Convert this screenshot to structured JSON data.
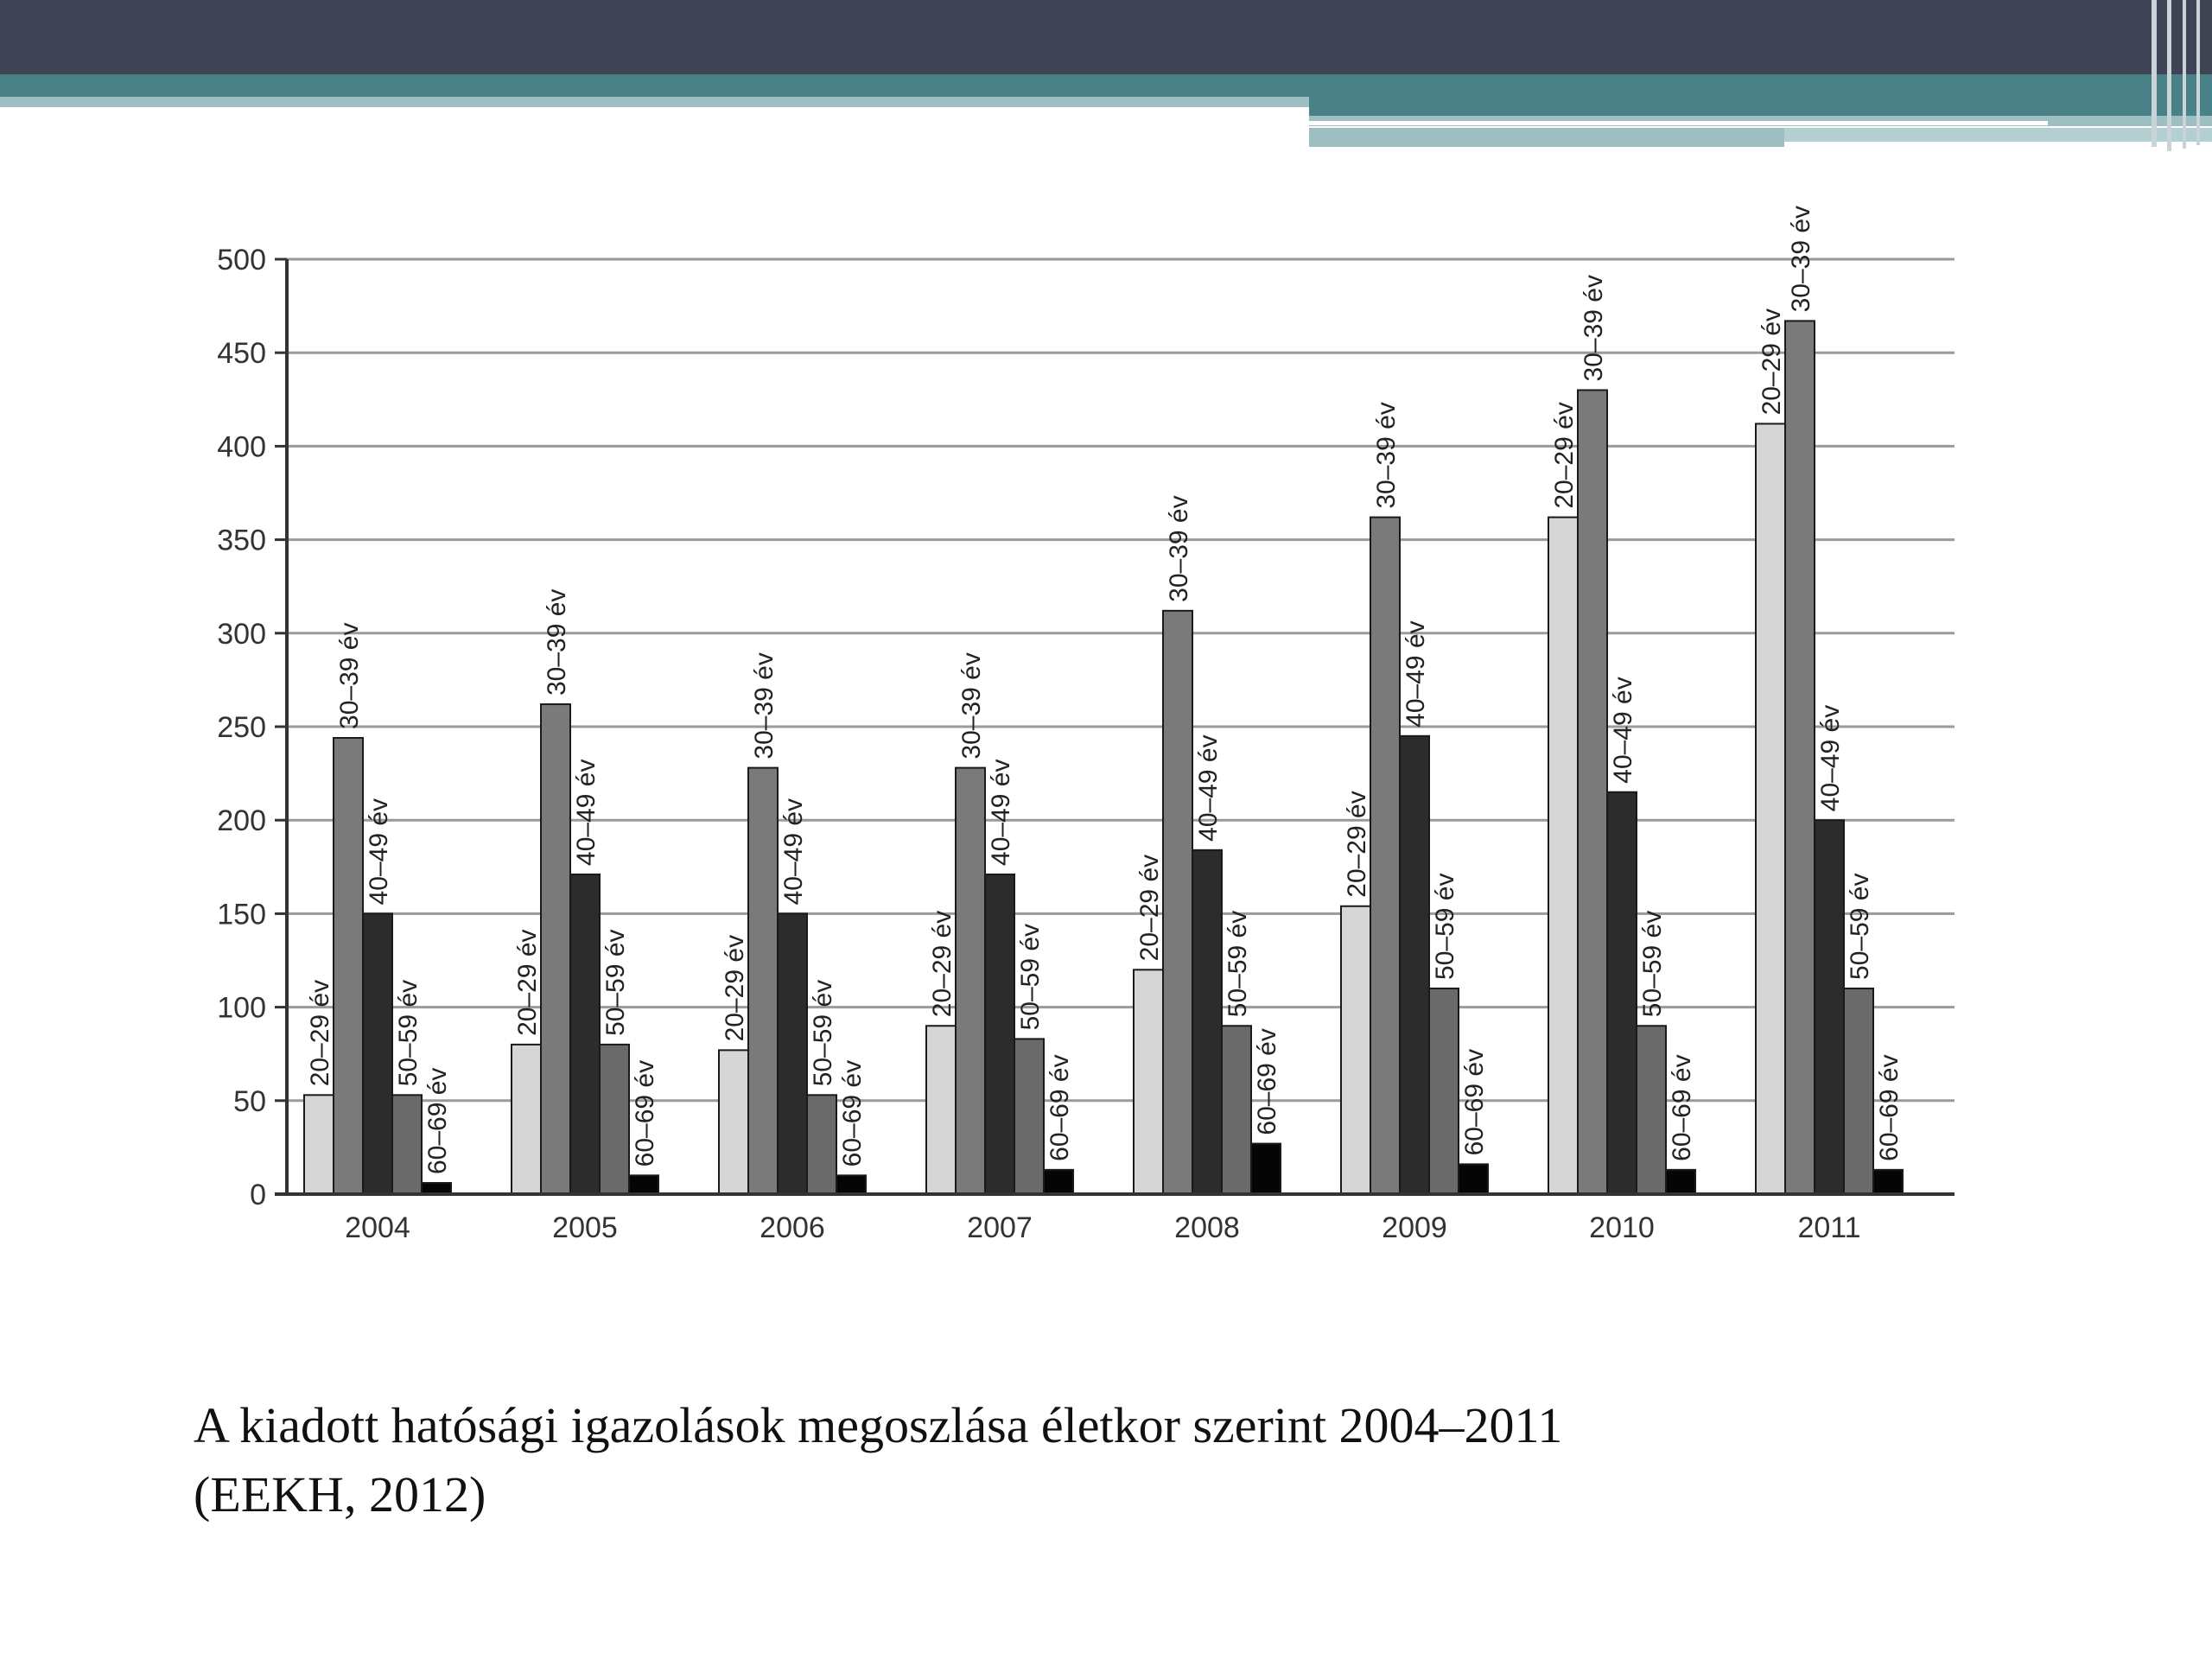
{
  "colors": {
    "header_dark": "#3e4453",
    "header_teal": "#4a8187",
    "header_light": "#9dbfc2",
    "series": [
      "#d6d6d6",
      "#7a7a7a",
      "#2c2c2c",
      "#6a6a6a",
      "#050505"
    ]
  },
  "caption": {
    "line1": "A kiadott hatósági igazolások megoszlása életkor szerint 2004–2011",
    "line2": "(EEKH, 2012)"
  },
  "chart_data": {
    "type": "bar",
    "categories": [
      "2004",
      "2005",
      "2006",
      "2007",
      "2008",
      "2009",
      "2010",
      "2011"
    ],
    "series": [
      {
        "name": "20–29 év",
        "values": [
          53,
          80,
          77,
          90,
          120,
          154,
          362,
          412
        ]
      },
      {
        "name": "30–39 év",
        "values": [
          244,
          262,
          228,
          228,
          312,
          362,
          430,
          467
        ]
      },
      {
        "name": "40–49 év",
        "values": [
          150,
          171,
          150,
          171,
          184,
          245,
          215,
          200
        ]
      },
      {
        "name": "50–59 év",
        "values": [
          53,
          80,
          53,
          83,
          90,
          110,
          90,
          110
        ]
      },
      {
        "name": "60–69 év",
        "values": [
          6,
          10,
          10,
          13,
          27,
          16,
          13,
          13
        ]
      }
    ],
    "yticks": [
      0,
      50,
      100,
      150,
      200,
      250,
      300,
      350,
      400,
      450,
      500
    ],
    "ylim": [
      0,
      500
    ],
    "grid": true,
    "xlabel": "",
    "ylabel": "",
    "title": ""
  }
}
